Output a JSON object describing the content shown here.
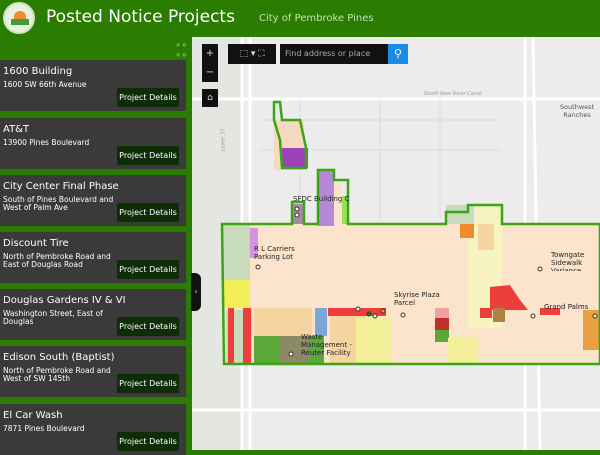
{
  "header": {
    "title": "Posted Notice Projects",
    "subtitle": "City of Pembroke Pines"
  },
  "sidebar": {
    "items": [
      {
        "name": "1600 Building",
        "address": "1600 SW 66th Avenue",
        "button": "Project Details"
      },
      {
        "name": "AT&T",
        "address": "13900 Pines Boulevard",
        "button": "Project Details"
      },
      {
        "name": "City Center Final Phase",
        "address": "South of Pines Boulevard and West of Palm Ave",
        "button": "Project Details"
      },
      {
        "name": "Discount Tire",
        "address": "North of Pembroke Road and East of Douglas Road",
        "button": "Project Details"
      },
      {
        "name": "Douglas Gardens IV & VI",
        "address": "Washington Street, East of Douglas",
        "button": "Project Details"
      },
      {
        "name": "Edison South (Baptist)",
        "address": "North of Pembroke Road and West of SW 145th",
        "button": "Project Details"
      },
      {
        "name": "El Car Wash",
        "address": "7871 Pines Boulevard",
        "button": "Project Details"
      }
    ]
  },
  "map": {
    "search_placeholder": "Find address or place",
    "zoom_in": "+",
    "zoom_out": "−",
    "labels": {
      "sfdc": "SFDC Building C",
      "rl": "R L Carriers Parking Lot",
      "skyrise": "Skyrise Plaza Parcel",
      "towngate": "Towngate Sidewalk Variance",
      "grand": "Grand Palms",
      "waste": "Waste Management - Reuter Facility",
      "southwest": "Southwest Ranches",
      "canal": "South New River Canal",
      "canal2": "South New River Canal",
      "levee": "Levee 37"
    }
  },
  "colors": {
    "header": "#2a7d00",
    "card": "#3a3a3a",
    "button": "#0d2d07",
    "boundary": "#3aa614",
    "search": "#1a8ce8"
  }
}
